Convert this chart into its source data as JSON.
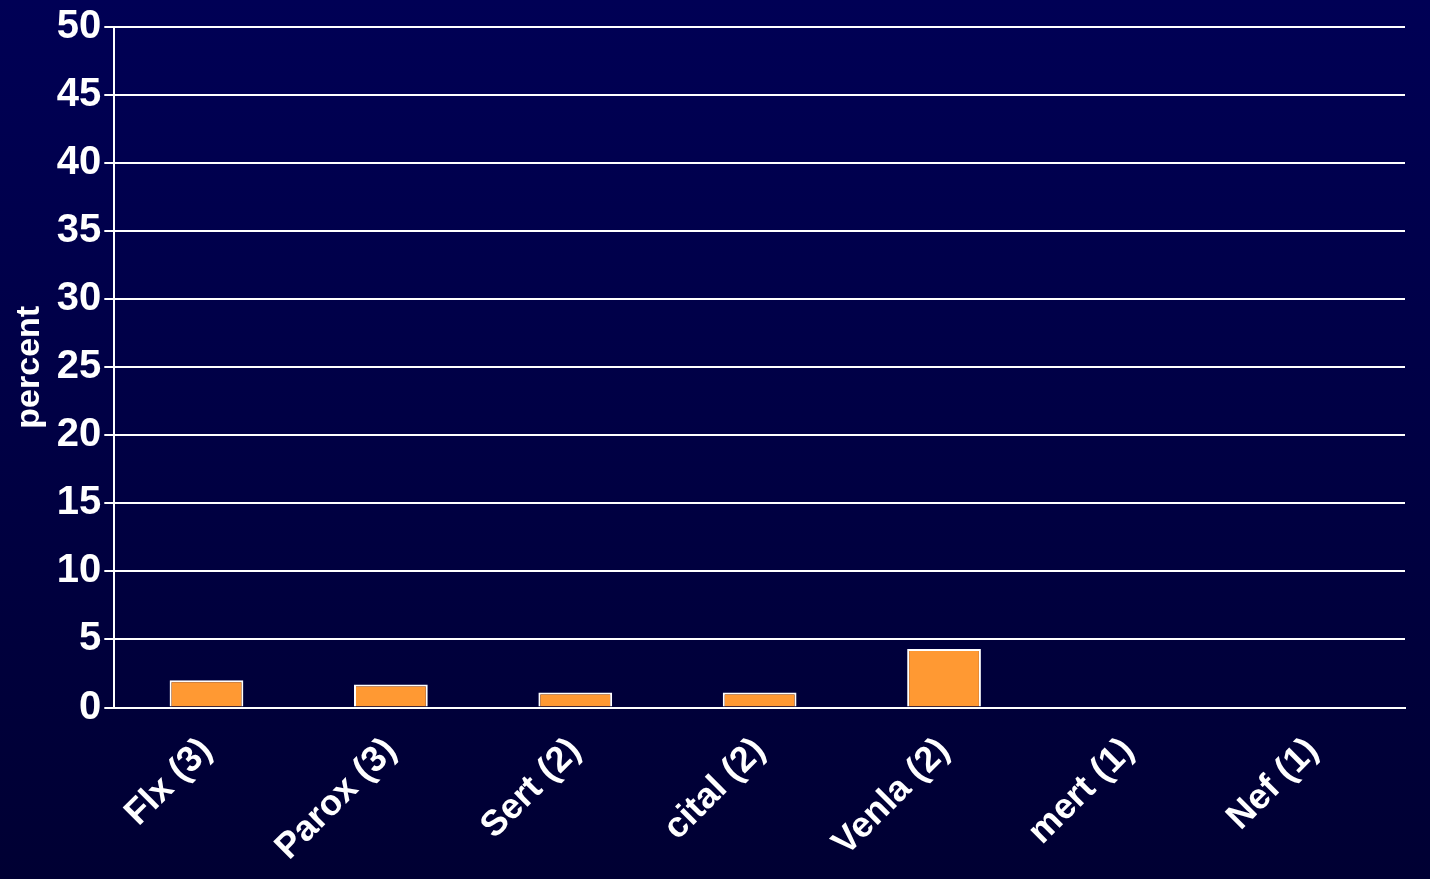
{
  "chart_data": {
    "type": "bar",
    "ylabel": "percent",
    "categories": [
      "Flx (3)",
      "Parox (3)",
      "Sert (2)",
      "cital (2)",
      "Venla (2)",
      "mert (1)",
      "Nef (1)"
    ],
    "values": [
      2.0,
      1.7,
      1.1,
      1.1,
      4.3,
      0,
      0
    ],
    "color": "#ff9933",
    "ylim": [
      0,
      50
    ],
    "yticks": [
      0,
      5,
      10,
      15,
      20,
      25,
      30,
      35,
      40,
      45,
      50
    ],
    "grid": "y"
  }
}
